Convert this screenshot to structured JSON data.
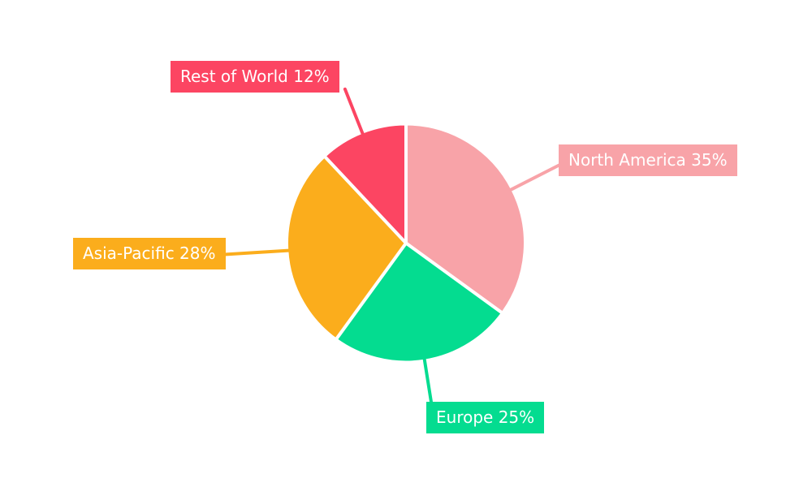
{
  "page": {
    "background_color": "#ffffff"
  },
  "chart_data": {
    "type": "pie",
    "title": "",
    "start_angle": "top",
    "direction": "clockwise",
    "legend": "none",
    "label_style": "boxed-callouts-with-leader-lines",
    "label_text_color": "#ffffff",
    "slice_gap_color": "#ffffff",
    "slices": [
      {
        "name": "North America",
        "value": 35,
        "unit": "%",
        "color": "#F8A3A8",
        "label": "North America 35%"
      },
      {
        "name": "Europe",
        "value": 25,
        "unit": "%",
        "color": "#04DC90",
        "label": "Europe 25%"
      },
      {
        "name": "Asia-Pacific",
        "value": 28,
        "unit": "%",
        "color": "#FBAD1C",
        "label": "Asia-Pacific 28%"
      },
      {
        "name": "Rest of World",
        "value": 12,
        "unit": "%",
        "color": "#FC4562",
        "label": "Rest of World 12%"
      }
    ]
  }
}
